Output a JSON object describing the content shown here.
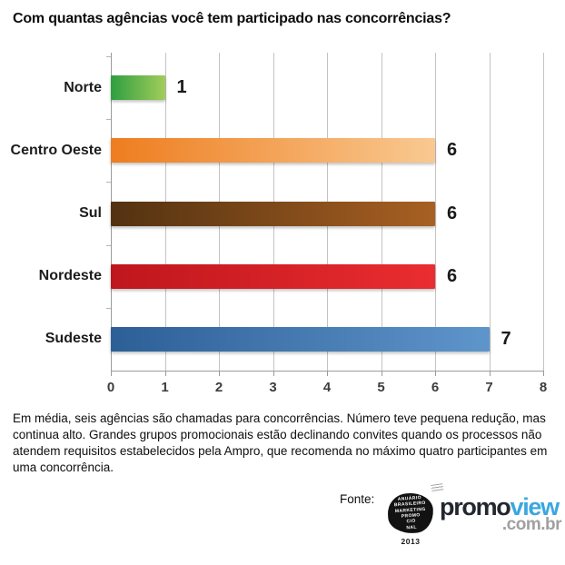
{
  "title": "Com quantas agências você tem participado nas concorrências?",
  "chart_data": {
    "type": "bar",
    "orientation": "horizontal",
    "title": "Com quantas agências você tem participado nas concorrências?",
    "categories": [
      "Norte",
      "Centro Oeste",
      "Sul",
      "Nordeste",
      "Sudeste"
    ],
    "values": [
      1,
      6,
      6,
      6,
      7
    ],
    "value_labels": [
      "1",
      "6",
      "6",
      "6",
      "7"
    ],
    "xlim": [
      0,
      8
    ],
    "xticks": [
      0,
      1,
      2,
      3,
      4,
      5,
      6,
      7,
      8
    ],
    "grid": true,
    "legend": false,
    "bar_gradients": [
      [
        "#2e9e40",
        "#a2cd5a"
      ],
      [
        "#ee7d1f",
        "#f9c991"
      ],
      [
        "#533211",
        "#a86022"
      ],
      [
        "#bf161d",
        "#ea2d30"
      ],
      [
        "#2d5f97",
        "#5e95cb"
      ]
    ]
  },
  "description": "Em média, seis agências são chamadas para concorrências. Número teve pequena redução, mas continua alto. Grandes grupos promocionais estão declinando convites quando os processos não atendem requisitos estabelecidos pela Ampro, que recomenda no máximo quatro participantes em uma concorrência.",
  "footer": {
    "source_label": "Fonte:",
    "stamp_logo": {
      "lines": [
        "ANUÁRIO",
        "BRASILEIRO",
        "MARKETING",
        "PROMO",
        "CIO",
        "NAL"
      ],
      "year": "2013"
    },
    "promoview_logo": {
      "part1": "promo",
      "part2": "view",
      "part3": ".com.br",
      "color_dark": "#23272f",
      "color_blue": "#3aa7e0",
      "color_gray": "#a0a0a0"
    }
  }
}
